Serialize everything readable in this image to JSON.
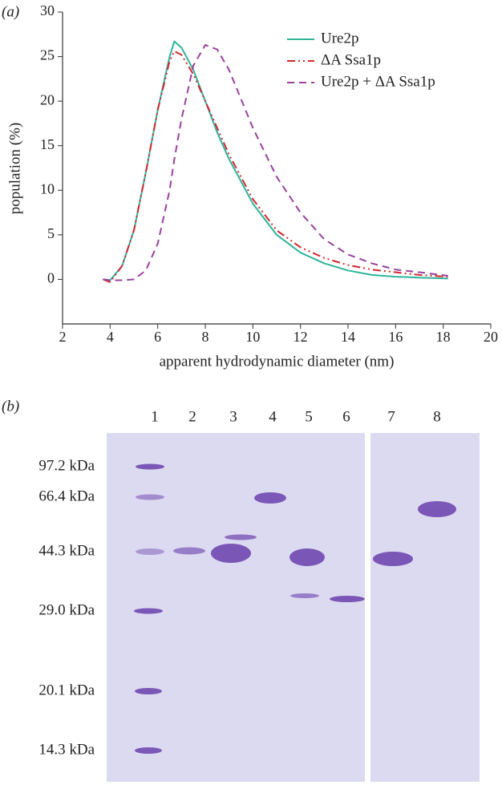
{
  "chart_data": {
    "type": "line",
    "label": "(a)",
    "xlabel": "apparent hydrodynamic diameter (nm)",
    "ylabel": "population (%)",
    "xlim": [
      2,
      20
    ],
    "xticks": [
      2,
      4,
      6,
      8,
      10,
      12,
      14,
      16,
      18,
      20
    ],
    "ylim": [
      -5,
      30
    ],
    "yticks": [
      0,
      5,
      10,
      15,
      20,
      25,
      30
    ],
    "x": [
      3.7,
      4,
      4.5,
      5,
      5.5,
      6,
      6.5,
      6.7,
      7,
      7.5,
      8,
      8.5,
      9,
      10,
      11,
      12,
      13,
      14,
      15,
      16,
      17,
      18.2
    ],
    "series": [
      {
        "name": "Ure2p",
        "color": "#2db39a",
        "style": "solid",
        "values": [
          0,
          -0.1,
          1.5,
          5.5,
          12,
          19,
          25,
          26.7,
          26,
          23.5,
          20,
          16.5,
          13.5,
          8.5,
          5,
          3,
          1.8,
          1,
          0.5,
          0.3,
          0.2,
          0.1
        ]
      },
      {
        "name": "ΔA Ssa1p",
        "color": "#d0282e",
        "style": "dash-dot",
        "values": [
          0,
          -0.3,
          1.5,
          5.5,
          12,
          19,
          24.5,
          25.6,
          25.2,
          23,
          20,
          17,
          14,
          9,
          5.5,
          3.6,
          2.4,
          1.6,
          1.1,
          0.8,
          0.5,
          0.3
        ]
      },
      {
        "name": "Ure2p + ΔA Ssa1p",
        "color": "#9b3fa0",
        "style": "dashed",
        "values": [
          0,
          -0.1,
          -0.1,
          0,
          1,
          4,
          10,
          13.5,
          18,
          24,
          26.3,
          25.8,
          23.5,
          17,
          11.5,
          7.5,
          4.5,
          2.8,
          1.8,
          1.1,
          0.8,
          0.4
        ]
      }
    ]
  },
  "gel": {
    "label": "(b)",
    "lanes": [
      "1",
      "2",
      "3",
      "4",
      "5",
      "6",
      "7",
      "8"
    ],
    "markers": [
      "97.2 kDa",
      "66.4 kDa",
      "44.3 kDa",
      "29.0 kDa",
      "20.1 kDa",
      "14.3 kDa"
    ]
  }
}
